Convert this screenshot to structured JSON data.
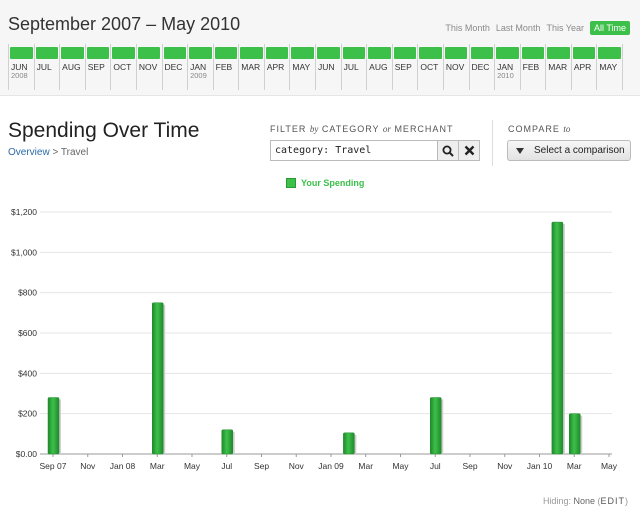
{
  "header": {
    "date_range": "September 2007 – May 2010",
    "range_links": [
      {
        "label": "This Month",
        "active": false
      },
      {
        "label": "Last Month",
        "active": false
      },
      {
        "label": "This Year",
        "active": false
      },
      {
        "label": "All Time",
        "active": true
      }
    ]
  },
  "timeline": {
    "months": [
      {
        "label": "JUN",
        "year": "2008"
      },
      {
        "label": "JUL",
        "year": ""
      },
      {
        "label": "AUG",
        "year": ""
      },
      {
        "label": "SEP",
        "year": ""
      },
      {
        "label": "OCT",
        "year": ""
      },
      {
        "label": "NOV",
        "year": ""
      },
      {
        "label": "DEC",
        "year": ""
      },
      {
        "label": "JAN",
        "year": "2009"
      },
      {
        "label": "FEB",
        "year": ""
      },
      {
        "label": "MAR",
        "year": ""
      },
      {
        "label": "APR",
        "year": ""
      },
      {
        "label": "MAY",
        "year": ""
      },
      {
        "label": "JUN",
        "year": ""
      },
      {
        "label": "JUL",
        "year": ""
      },
      {
        "label": "AUG",
        "year": ""
      },
      {
        "label": "SEP",
        "year": ""
      },
      {
        "label": "OCT",
        "year": ""
      },
      {
        "label": "NOV",
        "year": ""
      },
      {
        "label": "DEC",
        "year": ""
      },
      {
        "label": "JAN",
        "year": "2010"
      },
      {
        "label": "FEB",
        "year": ""
      },
      {
        "label": "MAR",
        "year": ""
      },
      {
        "label": "APR",
        "year": ""
      },
      {
        "label": "MAY",
        "year": ""
      }
    ]
  },
  "section": {
    "title": "Spending Over Time",
    "breadcrumb_link": "Overview",
    "breadcrumb_sep": ">",
    "breadcrumb_current": "Travel"
  },
  "filter": {
    "label_a": "FILTER",
    "label_by": "by",
    "label_b": "CATEGORY",
    "label_or": "or",
    "label_c": "MERCHANT",
    "value": "category: Travel"
  },
  "compare": {
    "label": "COMPARE",
    "label_to": "to",
    "button": "Select a comparison"
  },
  "legend": {
    "label": "Your Spending"
  },
  "footer": {
    "hiding_label": "Hiding:",
    "hiding_value": "None",
    "edit_label": "EDIT"
  },
  "colors": {
    "accent": "#3dc04a",
    "bar_dark": "#1f8a2b",
    "link": "#2a6aa8"
  },
  "chart_data": {
    "type": "bar",
    "categories": [
      "Sep 07",
      "Oct 07",
      "Nov 07",
      "Dec 07",
      "Jan 08",
      "Feb 08",
      "Mar 08",
      "Apr 08",
      "May 08",
      "Jun 08",
      "Jul 08",
      "Aug 08",
      "Sep 08",
      "Oct 08",
      "Nov 08",
      "Dec 08",
      "Jan 09",
      "Feb 09",
      "Mar 09",
      "Apr 09",
      "May 09",
      "Jun 09",
      "Jul 09",
      "Aug 09",
      "Sep 09",
      "Oct 09",
      "Nov 09",
      "Dec 09",
      "Jan 10",
      "Feb 10",
      "Mar 10",
      "Apr 10",
      "May 10"
    ],
    "tick_labels": [
      "Sep 07",
      "",
      "Nov",
      "",
      "Jan 08",
      "",
      "Mar",
      "",
      "May",
      "",
      "Jul",
      "",
      "Sep",
      "",
      "Nov",
      "",
      "Jan 09",
      "",
      "Mar",
      "",
      "May",
      "",
      "Jul",
      "",
      "Sep",
      "",
      "Nov",
      "",
      "Jan 10",
      "",
      "Mar",
      "",
      "May"
    ],
    "series": [
      {
        "name": "Your Spending",
        "values": [
          280,
          0,
          0,
          0,
          0,
          0,
          750,
          0,
          0,
          0,
          120,
          0,
          0,
          0,
          0,
          0,
          0,
          105,
          0,
          0,
          0,
          0,
          280,
          0,
          0,
          0,
          0,
          0,
          0,
          1150,
          200,
          0,
          0
        ]
      }
    ],
    "ylim": [
      0,
      1200
    ],
    "yticks": [
      0,
      200,
      400,
      600,
      800,
      1000,
      1200
    ],
    "ytick_labels": [
      "$0.00",
      "$200",
      "$400",
      "$600",
      "$800",
      "$1,000",
      "$1,200"
    ],
    "grid": true,
    "legend_position": "top-center"
  }
}
